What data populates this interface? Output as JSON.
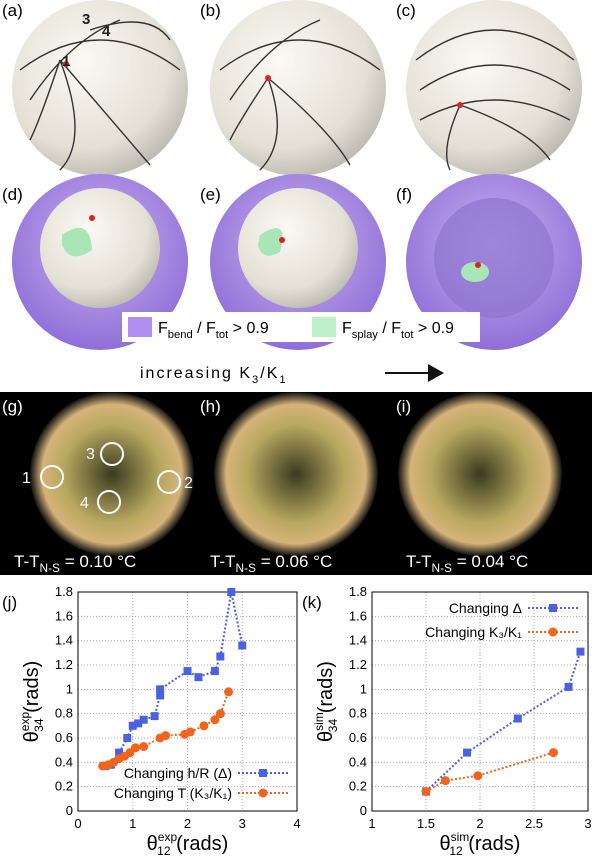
{
  "panels": {
    "labels": [
      "(a)",
      "(b)",
      "(c)",
      "(d)",
      "(e)",
      "(f)",
      "(g)",
      "(h)",
      "(i)",
      "(j)",
      "(k)"
    ]
  },
  "defect_labels": [
    "1",
    "3",
    "4"
  ],
  "region_labels": [
    "1",
    "2",
    "3",
    "4"
  ],
  "energy_legend": [
    {
      "base": "F",
      "sub": "bend",
      "mid": " / F",
      "sub2": "tot",
      "rest": " > 0.9"
    },
    {
      "base": "F",
      "sub": "splay",
      "mid": " / F",
      "sub2": "tot",
      "rest": " > 0.9"
    }
  ],
  "arrow_text": {
    "base": "increasing  K",
    "sub": "3",
    "mid": "/K",
    "sub2": "1"
  },
  "temperatures": [
    {
      "base": "T-T",
      "sub": "N-S",
      "rest": " = 0.10 °C"
    },
    {
      "base": "T-T",
      "sub": "N-S",
      "rest": " = 0.06 °C"
    },
    {
      "base": "T-T",
      "sub": "N-S",
      "rest": " = 0.04 °C"
    }
  ],
  "chart_data": [
    {
      "type": "line",
      "legend": "lower right",
      "grid": true,
      "xlabel": {
        "sym": "θ",
        "sub": "12",
        "sup": "exp",
        "unit": " (rads)"
      },
      "ylabel": {
        "sym": "θ",
        "sub": "34",
        "sup": "exp",
        "unit": " (rads)"
      },
      "xlim": [
        0,
        4
      ],
      "xticks": [
        0,
        1,
        2,
        3,
        4
      ],
      "ylim": [
        0,
        1.8
      ],
      "yticks": [
        0,
        0.2,
        0.4,
        0.6,
        0.8,
        1,
        1.2,
        1.4,
        1.6,
        1.8
      ],
      "series": [
        {
          "name": "Changing h/R (Δ)",
          "color": "#4a62e0",
          "marker": "square",
          "x": [
            0.5,
            0.6,
            0.75,
            0.9,
            1.0,
            1.1,
            1.2,
            1.4,
            1.5,
            1.5,
            2.0,
            2.2,
            2.5,
            2.6,
            2.8,
            3.0
          ],
          "values": [
            0.37,
            0.38,
            0.48,
            0.6,
            0.7,
            0.72,
            0.75,
            0.78,
            0.95,
            1.0,
            1.15,
            1.1,
            1.15,
            1.27,
            1.8,
            1.36
          ]
        },
        {
          "name": "Changing T (K₃/K₁)",
          "color": "#f0641e",
          "marker": "circle",
          "x": [
            0.45,
            0.55,
            0.65,
            0.75,
            0.85,
            0.95,
            1.05,
            1.2,
            1.5,
            1.6,
            1.95,
            2.05,
            2.3,
            2.5,
            2.6,
            2.75
          ],
          "values": [
            0.37,
            0.38,
            0.4,
            0.43,
            0.45,
            0.48,
            0.52,
            0.53,
            0.6,
            0.62,
            0.63,
            0.65,
            0.7,
            0.75,
            0.8,
            0.98
          ]
        }
      ]
    },
    {
      "type": "line",
      "legend": "upper left",
      "grid": true,
      "xlabel": {
        "sym": "θ",
        "sub": "12",
        "sup": "sim",
        "unit": " (rads)"
      },
      "ylabel": {
        "sym": "θ",
        "sub": "34",
        "sup": "sim",
        "unit": " (rads)"
      },
      "xlim": [
        1,
        3
      ],
      "xticks": [
        1,
        1.5,
        2,
        2.5,
        3
      ],
      "ylim": [
        0,
        1.8
      ],
      "yticks": [
        0,
        0.2,
        0.4,
        0.6,
        0.8,
        1,
        1.2,
        1.4,
        1.6,
        1.8
      ],
      "series": [
        {
          "name": "Changing Δ",
          "color": "#4a62e0",
          "marker": "square",
          "x": [
            1.5,
            1.88,
            2.35,
            2.82,
            2.93
          ],
          "values": [
            0.16,
            0.48,
            0.76,
            1.02,
            1.31
          ]
        },
        {
          "name": "Changing K₃/K₁",
          "color": "#f0641e",
          "marker": "circle",
          "x": [
            1.5,
            1.68,
            1.98,
            2.68
          ],
          "values": [
            0.16,
            0.25,
            0.29,
            0.48
          ]
        }
      ]
    }
  ]
}
